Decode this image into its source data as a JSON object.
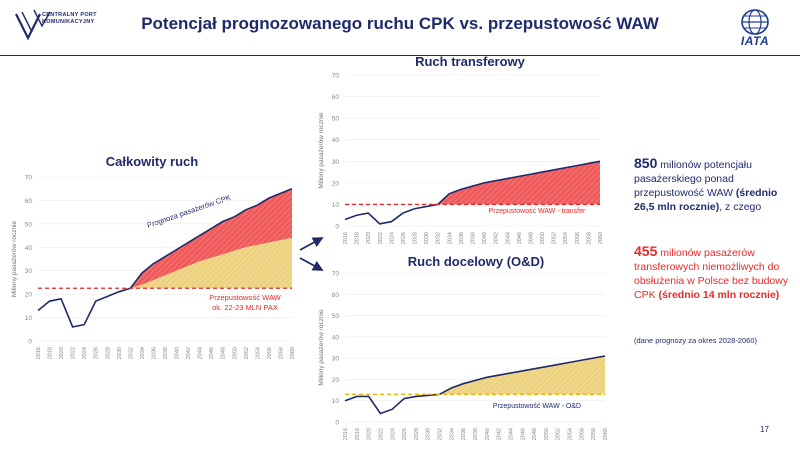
{
  "header": {
    "title": "Potencjał prognozowanego ruchu CPK vs. przepustowość WAW",
    "cpk_logo_text": [
      "CENTRALNY PORT",
      "KOMUNIKACYJNY"
    ],
    "iata_logo_text": "IATA"
  },
  "colors": {
    "navy": "#1f2a6b",
    "red_fill": "#f05a5a",
    "red_line": "#e52a2a",
    "yellow_fill": "#ecd27e",
    "yellow_line": "#e8b800"
  },
  "chart_data": [
    {
      "type": "area",
      "title": "Całkowity ruch",
      "ylabel": "Miliony pasażerów rocznie",
      "ylim": [
        0,
        70
      ],
      "yticks": [
        0,
        10,
        20,
        30,
        40,
        50,
        60,
        70
      ],
      "x": [
        "2016",
        "2018",
        "2020",
        "2022",
        "2024",
        "2026",
        "2028",
        "2030",
        "2032",
        "2034",
        "2036",
        "2038",
        "2040",
        "2042",
        "2044",
        "2046",
        "2048",
        "2050",
        "2052",
        "2054",
        "2056",
        "2058",
        "2060"
      ],
      "series": [
        {
          "name": "Prognoza pasażerów CPK",
          "values": [
            13,
            17,
            18,
            6,
            7,
            17,
            19,
            21,
            22.5,
            29,
            33,
            36,
            39,
            42,
            45,
            48,
            51,
            53,
            56,
            58,
            61,
            63,
            65
          ]
        }
      ],
      "reference": {
        "value": 22.5,
        "label": "Przepustowość WAW",
        "sublabel": "ok. 22-23 MLN PAX"
      },
      "transfer_band_top": [
        13,
        17,
        18,
        6,
        7,
        17,
        19,
        21,
        22.5,
        29,
        33,
        36,
        39,
        42,
        45,
        48,
        51,
        53,
        56,
        58,
        61,
        63,
        65
      ],
      "od_band_top": [
        13,
        17,
        18,
        6,
        7,
        17,
        19,
        21,
        22.5,
        24,
        26,
        28,
        30,
        32,
        34,
        35.5,
        37,
        38.5,
        40,
        41,
        42,
        43,
        44
      ]
    },
    {
      "type": "area",
      "title": "Ruch transferowy",
      "ylabel": "Miliony pasażerów rocznie",
      "ylim": [
        0,
        70
      ],
      "yticks": [
        0,
        10,
        20,
        30,
        40,
        50,
        60,
        70
      ],
      "x": [
        "2016",
        "2018",
        "2020",
        "2022",
        "2024",
        "2026",
        "2028",
        "2030",
        "2032",
        "2034",
        "2036",
        "2038",
        "2040",
        "2042",
        "2044",
        "2046",
        "2048",
        "2050",
        "2052",
        "2054",
        "2056",
        "2058",
        "2060"
      ],
      "series": [
        {
          "name": "Ruch transferowy",
          "values": [
            3,
            5,
            6,
            1,
            2,
            6,
            8,
            9,
            10,
            15,
            17,
            18.5,
            20,
            21,
            22,
            23,
            24,
            25,
            26,
            27,
            28,
            29,
            30
          ]
        }
      ],
      "reference": {
        "value": 10,
        "label": "Przepustowość WAW - transfer"
      }
    },
    {
      "type": "area",
      "title": "Ruch docelowy (O&D)",
      "ylabel": "Miliony pasażerów rocznie",
      "ylim": [
        0,
        70
      ],
      "yticks": [
        0,
        10,
        20,
        30,
        40,
        50,
        60,
        70
      ],
      "x": [
        "2016",
        "2018",
        "2020",
        "2022",
        "2024",
        "2026",
        "2028",
        "2030",
        "2032",
        "2034",
        "2036",
        "2038",
        "2040",
        "2042",
        "2044",
        "2046",
        "2048",
        "2050",
        "2052",
        "2054",
        "2056",
        "2058",
        "2060"
      ],
      "series": [
        {
          "name": "Ruch docelowy",
          "values": [
            10,
            12,
            12,
            4,
            6,
            11,
            12,
            12.5,
            13,
            16,
            18,
            19.5,
            21,
            22,
            23,
            24,
            25,
            26,
            27,
            28,
            29,
            30,
            31
          ]
        }
      ],
      "reference": {
        "value": 13,
        "label": "Przepustowość WAW - O&D"
      }
    }
  ],
  "side": {
    "p1_big": "850",
    "p1_rest": " milionów potencjału pasażerskiego ponad przepustowość WAW ",
    "p1_bold": "(średnio 26,5 mln rocznie)",
    "p1_end": ", z czego",
    "p2_big": "455",
    "p2_rest": " milionów pasażerów transferowych niemożliwych do obsłużenia w Polsce bez budowy CPK ",
    "p2_bold": "(średnio 14 mln rocznie)",
    "note": "(dane prognozy za okres 2028-2060)"
  },
  "page_number": "17"
}
